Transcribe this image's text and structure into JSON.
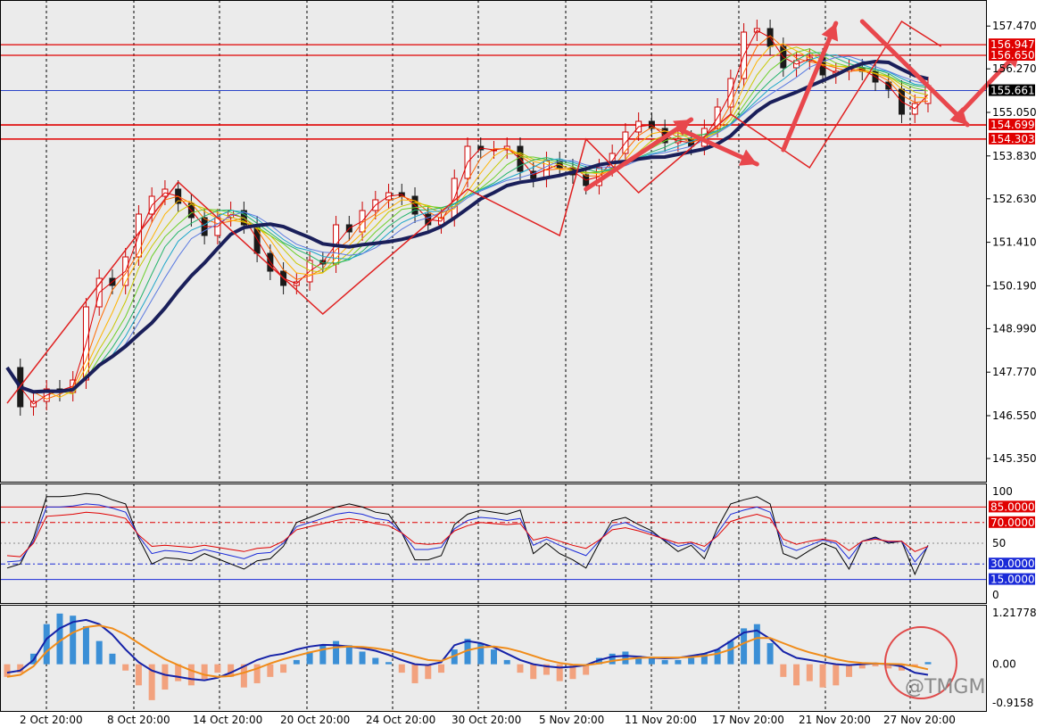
{
  "colors": {
    "background": "#ebebeb",
    "frame": "#000000",
    "resistance_line": "#e00000",
    "current_price_line": "#2b45c8",
    "slow_ma": "#1a1f5a",
    "candle_up": "#cc0000",
    "candle_down": "#1a1a1a",
    "zigzag": "#e02020",
    "arrow": "#e8474c",
    "rsi_main": "#000000",
    "rsi_blue": "#1a2ad8",
    "rsi_red": "#e00000",
    "macd_pos": "#3b8fd6",
    "macd_neg": "#f2a27e",
    "macd_line": "#1522a8",
    "signal_line": "#f08c1a",
    "circle": "#e04a4a"
  },
  "chart_data": [
    {
      "type": "candlestick",
      "panel": "price",
      "title": "",
      "x_ticks": [
        "2 Oct 20:00",
        "8 Oct 20:00",
        "14 Oct 20:00",
        "20 Oct 20:00",
        "24 Oct 20:00",
        "30 Oct 20:00",
        "5 Nov 20:00",
        "11 Nov 20:00",
        "17 Nov 20:00",
        "21 Nov 20:00",
        "27 Nov 20:00"
      ],
      "y_ticks": [
        "157.470",
        "156.270",
        "155.050",
        "153.830",
        "152.630",
        "151.410",
        "150.190",
        "148.990",
        "147.770",
        "146.550",
        "145.350"
      ],
      "ylim": [
        144.95,
        158.0
      ],
      "levels": [
        {
          "label": "156.947",
          "value": 156.947,
          "color": "#e00000"
        },
        {
          "label": "156.650",
          "value": 156.65,
          "color": "#e00000"
        },
        {
          "label": "154.699",
          "value": 154.699,
          "color": "#e00000"
        },
        {
          "label": "154.303",
          "value": 154.303,
          "color": "#e00000"
        }
      ],
      "current_price": {
        "label": "155.661",
        "value": 155.661
      },
      "price_path": [
        [
          0,
          147.9
        ],
        [
          1,
          146.8
        ],
        [
          2,
          146.95
        ],
        [
          3,
          147.3
        ],
        [
          4,
          147.2
        ],
        [
          5,
          147.55
        ],
        [
          6,
          149.6
        ],
        [
          7,
          150.4
        ],
        [
          8,
          150.2
        ],
        [
          9,
          151.0
        ],
        [
          10,
          152.2
        ],
        [
          11,
          152.7
        ],
        [
          12,
          152.9
        ],
        [
          13,
          152.5
        ],
        [
          14,
          152.1
        ],
        [
          15,
          151.6
        ],
        [
          16,
          152.1
        ],
        [
          17,
          152.3
        ],
        [
          18,
          151.9
        ],
        [
          19,
          151.1
        ],
        [
          20,
          150.6
        ],
        [
          21,
          150.2
        ],
        [
          22,
          150.3
        ],
        [
          23,
          150.9
        ],
        [
          24,
          150.8
        ],
        [
          25,
          151.9
        ],
        [
          26,
          151.7
        ],
        [
          27,
          152.3
        ],
        [
          28,
          152.6
        ],
        [
          29,
          152.8
        ],
        [
          30,
          152.7
        ],
        [
          31,
          152.2
        ],
        [
          32,
          151.9
        ],
        [
          33,
          152.1
        ],
        [
          34,
          153.2
        ],
        [
          35,
          154.1
        ],
        [
          36,
          154.0
        ],
        [
          37,
          154.0
        ],
        [
          38,
          154.1
        ],
        [
          39,
          153.4
        ],
        [
          40,
          153.2
        ],
        [
          41,
          153.7
        ],
        [
          42,
          153.5
        ],
        [
          43,
          153.3
        ],
        [
          44,
          153.0
        ],
        [
          45,
          153.5
        ],
        [
          46,
          153.9
        ],
        [
          47,
          154.5
        ],
        [
          48,
          154.8
        ],
        [
          49,
          154.6
        ],
        [
          50,
          154.2
        ],
        [
          51,
          154.3
        ],
        [
          52,
          154.1
        ],
        [
          53,
          154.6
        ],
        [
          54,
          155.2
        ],
        [
          55,
          156.0
        ],
        [
          56,
          157.3
        ],
        [
          57,
          157.4
        ],
        [
          58,
          156.9
        ],
        [
          59,
          156.3
        ],
        [
          60,
          156.5
        ],
        [
          61,
          156.6
        ],
        [
          62,
          156.1
        ],
        [
          63,
          156.2
        ],
        [
          64,
          156.3
        ],
        [
          65,
          156.2
        ],
        [
          66,
          155.9
        ],
        [
          67,
          155.7
        ],
        [
          68,
          155.0
        ],
        [
          69,
          155.3
        ],
        [
          70,
          155.8
        ]
      ],
      "annotations": {
        "zigzag": [
          [
            0,
            146.9
          ],
          [
            13,
            153.1
          ],
          [
            24,
            149.4
          ],
          [
            35,
            152.9
          ],
          [
            42,
            151.6
          ],
          [
            44,
            154.3
          ],
          [
            48,
            152.8
          ],
          [
            55,
            155.0
          ],
          [
            61,
            153.5
          ],
          [
            68,
            157.6
          ],
          [
            71,
            156.9
          ]
        ],
        "arrows": [
          {
            "from": [
              44,
              152.9
            ],
            "to": [
              52,
              154.85
            ]
          },
          {
            "from": [
              51,
              154.6
            ],
            "to": [
              57,
              153.6
            ]
          },
          {
            "from": [
              59,
              154.0
            ],
            "to": [
              63,
              157.55
            ]
          },
          {
            "from": [
              65,
              157.6
            ],
            "to": [
              73,
              154.7
            ]
          },
          {
            "from": [
              72,
              154.85
            ],
            "to": [
              77,
              156.8
            ]
          }
        ]
      }
    },
    {
      "type": "line",
      "panel": "oscillator",
      "title": "",
      "y_ticks": [
        "100",
        "50",
        "0"
      ],
      "ylim": [
        0,
        100
      ],
      "levels": [
        {
          "label": "85.0000",
          "value": 85,
          "color": "#e00000"
        },
        {
          "label": "70.0000",
          "value": 70,
          "color": "#e00000"
        },
        {
          "label": "30.0000",
          "value": 30,
          "color": "#1a2ad8"
        },
        {
          "label": "15.0000",
          "value": 15,
          "color": "#1a2ad8"
        }
      ],
      "series": [
        {
          "color": "#000000",
          "values": [
            26,
            30,
            55,
            95,
            95,
            96,
            98,
            97,
            92,
            88,
            55,
            30,
            36,
            35,
            33,
            40,
            35,
            30,
            25,
            33,
            35,
            47,
            70,
            75,
            80,
            85,
            88,
            85,
            80,
            78,
            60,
            34,
            34,
            38,
            68,
            78,
            82,
            80,
            78,
            82,
            40,
            50,
            40,
            34,
            26,
            50,
            72,
            75,
            68,
            62,
            52,
            42,
            48,
            35,
            65,
            88,
            92,
            95,
            88,
            40,
            35,
            43,
            50,
            45,
            25,
            52,
            56,
            50,
            52,
            20,
            48
          ]
        },
        {
          "color": "#1a2ad8",
          "values": [
            32,
            33,
            52,
            85,
            85,
            86,
            88,
            87,
            84,
            80,
            57,
            40,
            43,
            42,
            40,
            44,
            41,
            38,
            35,
            40,
            41,
            50,
            66,
            70,
            74,
            78,
            80,
            78,
            74,
            72,
            60,
            44,
            44,
            46,
            64,
            72,
            75,
            74,
            72,
            74,
            48,
            54,
            48,
            43,
            38,
            52,
            67,
            70,
            64,
            60,
            53,
            47,
            50,
            42,
            60,
            78,
            82,
            85,
            80,
            48,
            43,
            48,
            53,
            50,
            35,
            52,
            55,
            51,
            52,
            32,
            47
          ]
        },
        {
          "color": "#e00000",
          "values": [
            38,
            37,
            50,
            76,
            77,
            78,
            80,
            79,
            77,
            74,
            58,
            47,
            48,
            47,
            46,
            48,
            46,
            44,
            42,
            45,
            46,
            52,
            63,
            66,
            69,
            72,
            74,
            72,
            69,
            67,
            60,
            50,
            49,
            50,
            62,
            67,
            70,
            69,
            68,
            69,
            53,
            56,
            52,
            48,
            45,
            53,
            63,
            65,
            62,
            58,
            54,
            50,
            51,
            47,
            57,
            71,
            75,
            78,
            74,
            54,
            49,
            52,
            54,
            52,
            43,
            52,
            54,
            52,
            52,
            42,
            47
          ]
        }
      ]
    },
    {
      "type": "bar+line",
      "panel": "macd",
      "title": "",
      "y_ticks": [
        "1.21778",
        "0.00",
        "-0.9158"
      ],
      "ylim": [
        -0.9158,
        1.21778
      ],
      "histogram": [
        -0.3,
        -0.2,
        0.25,
        0.95,
        1.2,
        1.15,
        0.9,
        0.55,
        0.25,
        -0.15,
        -0.5,
        -0.85,
        -0.6,
        -0.4,
        -0.5,
        -0.35,
        -0.2,
        -0.3,
        -0.55,
        -0.45,
        -0.3,
        -0.2,
        0.1,
        0.3,
        0.45,
        0.55,
        0.45,
        0.3,
        0.15,
        0.05,
        -0.2,
        -0.45,
        -0.35,
        -0.2,
        0.35,
        0.6,
        0.5,
        0.35,
        0.1,
        -0.2,
        -0.35,
        -0.25,
        -0.4,
        -0.35,
        -0.25,
        0.15,
        0.25,
        0.3,
        0.2,
        0.15,
        0.1,
        0.1,
        0.15,
        0.25,
        0.35,
        0.55,
        0.85,
        0.95,
        0.5,
        -0.3,
        -0.5,
        -0.4,
        -0.55,
        -0.5,
        -0.3,
        -0.1,
        -0.05,
        -0.1,
        -0.15,
        -0.05,
        0.05
      ],
      "series": [
        {
          "color": "#1522a8",
          "values": [
            -0.2,
            -0.15,
            0.1,
            0.6,
            0.85,
            1.0,
            1.05,
            0.95,
            0.7,
            0.35,
            0.05,
            -0.15,
            -0.25,
            -0.3,
            -0.35,
            -0.38,
            -0.32,
            -0.2,
            -0.05,
            0.1,
            0.2,
            0.25,
            0.35,
            0.42,
            0.46,
            0.45,
            0.42,
            0.38,
            0.32,
            0.22,
            0.1,
            0.0,
            -0.02,
            0.05,
            0.45,
            0.55,
            0.5,
            0.4,
            0.25,
            0.1,
            0.0,
            -0.05,
            -0.08,
            -0.06,
            -0.02,
            0.1,
            0.18,
            0.2,
            0.18,
            0.15,
            0.14,
            0.15,
            0.2,
            0.25,
            0.35,
            0.55,
            0.75,
            0.8,
            0.6,
            0.3,
            0.15,
            0.1,
            0.05,
            0.0,
            -0.02,
            0.0,
            0.02,
            0.0,
            -0.05,
            -0.2,
            -0.25
          ]
        },
        {
          "color": "#f08c1a",
          "values": [
            -0.3,
            -0.25,
            -0.05,
            0.3,
            0.55,
            0.75,
            0.88,
            0.92,
            0.85,
            0.7,
            0.5,
            0.3,
            0.12,
            -0.02,
            -0.15,
            -0.25,
            -0.3,
            -0.28,
            -0.2,
            -0.1,
            0.02,
            0.12,
            0.2,
            0.28,
            0.35,
            0.4,
            0.42,
            0.41,
            0.38,
            0.33,
            0.26,
            0.18,
            0.1,
            0.08,
            0.2,
            0.33,
            0.4,
            0.42,
            0.38,
            0.3,
            0.2,
            0.1,
            0.03,
            -0.01,
            -0.02,
            0.02,
            0.08,
            0.12,
            0.15,
            0.16,
            0.16,
            0.16,
            0.17,
            0.2,
            0.25,
            0.35,
            0.5,
            0.62,
            0.62,
            0.5,
            0.38,
            0.28,
            0.2,
            0.12,
            0.06,
            0.03,
            0.02,
            0.01,
            0.0,
            -0.05,
            -0.12
          ]
        }
      ]
    }
  ],
  "watermark": "@TMGM"
}
